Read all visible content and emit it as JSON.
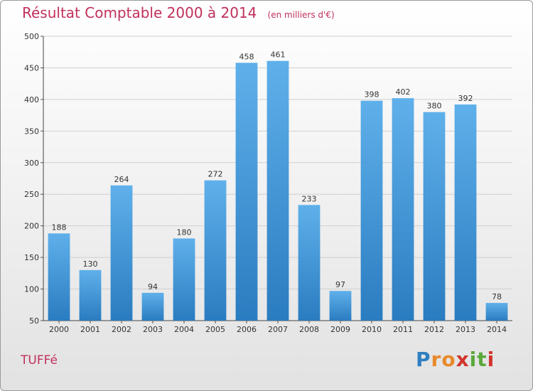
{
  "chart_data": {
    "type": "bar",
    "title": "Résultat Comptable 2000 à 2014",
    "subtitle": "(en milliers d'€)",
    "categories": [
      "2000",
      "2001",
      "2002",
      "2003",
      "2004",
      "2005",
      "2006",
      "2007",
      "2008",
      "2009",
      "2010",
      "2011",
      "2012",
      "2013",
      "2014"
    ],
    "values": [
      188,
      130,
      264,
      94,
      180,
      272,
      458,
      461,
      233,
      97,
      398,
      402,
      380,
      392,
      78
    ],
    "ylim": [
      50,
      500
    ],
    "yticks": [
      50,
      100,
      150,
      200,
      250,
      300,
      350,
      400,
      450,
      500
    ],
    "xlabel": "",
    "ylabel": "",
    "grid": true,
    "bar_color": "#3a8fd4"
  },
  "footer": {
    "commune": "TUFFé",
    "logo_letters": [
      "P",
      "r",
      "o",
      "x",
      "i",
      "t",
      "i"
    ],
    "logo_colors": [
      "#2f7fc1",
      "#e8892a",
      "#e8892a",
      "#d0342c",
      "#5aa83a",
      "#5aa83a",
      "#d0342c"
    ]
  }
}
